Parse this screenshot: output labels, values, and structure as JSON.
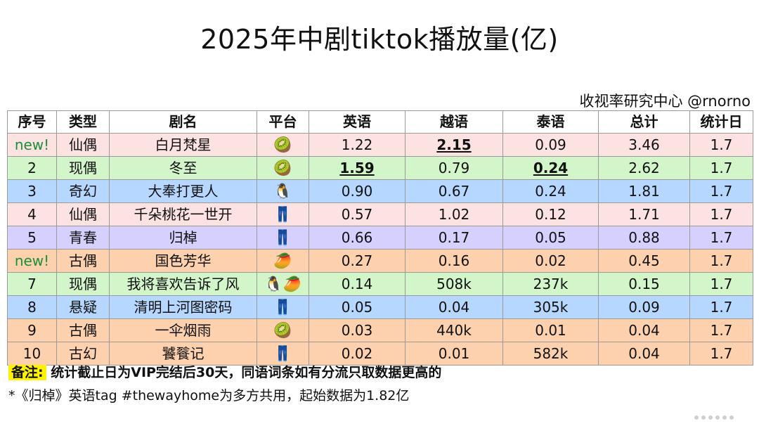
{
  "title": "2025年中剧tiktok播放量(亿)",
  "credit": "收视率研究中心 @rnorno",
  "headers": [
    "序号",
    "类型",
    "剧名",
    "平台",
    "英语",
    "越语",
    "泰语",
    "总计",
    "统计日"
  ],
  "colors": {
    "pink": "#fde2e2",
    "green": "#d2f5c9",
    "blue": "#b6d7ff",
    "purple": "#d6d0ff",
    "orange": "#fdd1ae",
    "new_text": "#1a8f3c",
    "highlight": "#fff200"
  },
  "platform_icons": {
    "kiwi": "🥝",
    "penguin": "🐧",
    "jeans": "👖",
    "mango": "🥭"
  },
  "rows": [
    {
      "no": "new!",
      "is_new": true,
      "genre": "仙偶",
      "title": "白月梵星",
      "platform": "🥝",
      "platform_names": [
        "kiwi-icon"
      ],
      "en": "1.22",
      "vi": "2.15",
      "th": "0.09",
      "total": "3.46",
      "date": "1.7",
      "bg": "pink",
      "highlight": [
        "vi"
      ]
    },
    {
      "no": "2",
      "is_new": false,
      "genre": "现偶",
      "title": "冬至",
      "platform": "🥝",
      "platform_names": [
        "kiwi-icon"
      ],
      "en": "1.59",
      "vi": "0.79",
      "th": "0.24",
      "total": "2.62",
      "date": "1.7",
      "bg": "green",
      "highlight": [
        "en",
        "th"
      ]
    },
    {
      "no": "3",
      "is_new": false,
      "genre": "奇幻",
      "title": "大奉打更人",
      "platform": "🐧",
      "platform_names": [
        "penguin-icon"
      ],
      "en": "0.90",
      "vi": "0.67",
      "th": "0.24",
      "total": "1.81",
      "date": "1.7",
      "bg": "blue",
      "highlight": []
    },
    {
      "no": "4",
      "is_new": false,
      "genre": "仙偶",
      "title": "千朵桃花一世开",
      "platform": "👖",
      "platform_names": [
        "jeans-icon"
      ],
      "en": "0.57",
      "vi": "1.02",
      "th": "0.12",
      "total": "1.71",
      "date": "1.7",
      "bg": "pink",
      "highlight": []
    },
    {
      "no": "5",
      "is_new": false,
      "genre": "青春",
      "title": "归棹",
      "platform": "👖",
      "platform_names": [
        "jeans-icon"
      ],
      "en": "0.66",
      "vi": "0.17",
      "th": "0.05",
      "total": "0.88",
      "date": "1.7",
      "bg": "purple",
      "highlight": []
    },
    {
      "no": "new!",
      "is_new": true,
      "genre": "古偶",
      "title": "国色芳华",
      "platform": "🥭",
      "platform_names": [
        "mango-icon"
      ],
      "en": "0.27",
      "vi": "0.16",
      "th": "0.02",
      "total": "0.45",
      "date": "1.7",
      "bg": "orange",
      "highlight": []
    },
    {
      "no": "7",
      "is_new": false,
      "genre": "现偶",
      "title": "我将喜欢告诉了风",
      "platform": "🐧🥭",
      "platform_names": [
        "penguin-icon",
        "mango-icon"
      ],
      "en": "0.14",
      "vi": "508k",
      "th": "237k",
      "total": "0.15",
      "date": "1.7",
      "bg": "green",
      "highlight": []
    },
    {
      "no": "8",
      "is_new": false,
      "genre": "悬疑",
      "title": "清明上河图密码",
      "platform": "👖",
      "platform_names": [
        "jeans-icon"
      ],
      "en": "0.05",
      "vi": "0.04",
      "th": "305k",
      "total": "0.09",
      "date": "1.7",
      "bg": "blue",
      "highlight": []
    },
    {
      "no": "9",
      "is_new": false,
      "genre": "古偶",
      "title": "一伞烟雨",
      "platform": "🥝",
      "platform_names": [
        "kiwi-icon"
      ],
      "en": "0.03",
      "vi": "440k",
      "th": "0.01",
      "total": "0.04",
      "date": "1.7",
      "bg": "orange",
      "highlight": []
    },
    {
      "no": "10",
      "is_new": false,
      "genre": "古幻",
      "title": "饕餮记",
      "platform": "👖",
      "platform_names": [
        "jeans-icon"
      ],
      "en": "0.02",
      "vi": "0.01",
      "th": "582k",
      "total": "0.04",
      "date": "1.7",
      "bg": "orange",
      "highlight": []
    }
  ],
  "note_label": "备注:",
  "note_text": "统计截止日为VIP完结后30天，同语词条如有分流只取数据更高的",
  "footnote": "*《归棹》英语tag #thewayhome为多方共用，起始数据为1.82亿"
}
